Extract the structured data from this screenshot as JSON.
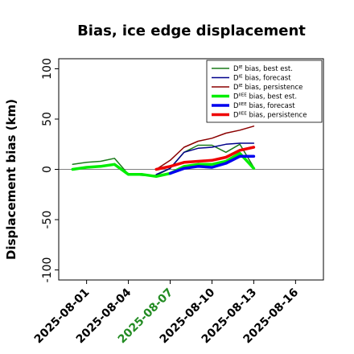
{
  "chart_data": {
    "type": "line",
    "title": "Bias, ice edge displacement",
    "ylabel": "Displacement bias (km)",
    "xlabel": "",
    "ylim": [
      -110,
      110
    ],
    "xlim": [
      "2025-07-30",
      "2025-08-18"
    ],
    "y_ticks": [
      -100,
      -50,
      0,
      50,
      100
    ],
    "x_ticks": [
      "2025-08-01",
      "2025-08-04",
      "2025-08-07",
      "2025-08-10",
      "2025-08-13",
      "2025-08-16"
    ],
    "highlight_tick": "2025-08-07",
    "highlight_color": "#228b22",
    "zero_line": true,
    "legend_position": "top-right",
    "series": [
      {
        "name": "D",
        "sup": "IE",
        "rest": " bias, best est.",
        "color": "#1a7a1a",
        "width": 1.5,
        "x": [
          "2025-07-31",
          "2025-08-01",
          "2025-08-02",
          "2025-08-03",
          "2025-08-04",
          "2025-08-05",
          "2025-08-06",
          "2025-08-07",
          "2025-08-08",
          "2025-08-09",
          "2025-08-10",
          "2025-08-11",
          "2025-08-12",
          "2025-08-13"
        ],
        "values": [
          5,
          7,
          8,
          11,
          -5,
          -6,
          -6,
          1,
          17,
          24,
          24,
          17,
          25,
          2
        ]
      },
      {
        "name": "D",
        "sup": "IE",
        "rest": " bias, forecast",
        "color": "#00008b",
        "width": 1.5,
        "x": [
          "2025-08-06",
          "2025-08-07",
          "2025-08-08",
          "2025-08-09",
          "2025-08-10",
          "2025-08-11",
          "2025-08-12",
          "2025-08-13"
        ],
        "values": [
          -5,
          1,
          17,
          21,
          22,
          25,
          26,
          26
        ]
      },
      {
        "name": "D",
        "sup": "IE",
        "rest": " bias, persistence",
        "color": "#8b0000",
        "width": 1.5,
        "x": [
          "2025-08-06",
          "2025-08-07",
          "2025-08-08",
          "2025-08-09",
          "2025-08-10",
          "2025-08-11",
          "2025-08-12",
          "2025-08-13"
        ],
        "values": [
          0,
          9,
          22,
          28,
          31,
          36,
          39,
          43
        ]
      },
      {
        "name": "D",
        "sup": "IIEE",
        "rest": " bias, best est.",
        "color": "#00ee00",
        "width": 3.5,
        "x": [
          "2025-07-31",
          "2025-08-01",
          "2025-08-02",
          "2025-08-03",
          "2025-08-04",
          "2025-08-05",
          "2025-08-06",
          "2025-08-07",
          "2025-08-08",
          "2025-08-09",
          "2025-08-10",
          "2025-08-11",
          "2025-08-12",
          "2025-08-13"
        ],
        "values": [
          0,
          2,
          3,
          5,
          -5,
          -5,
          -7,
          -4,
          3,
          5,
          5,
          8,
          16,
          1
        ]
      },
      {
        "name": "D",
        "sup": "IIEE",
        "rest": " bias, forecast",
        "color": "#0000ee",
        "width": 3.5,
        "x": [
          "2025-08-07",
          "2025-08-08",
          "2025-08-09",
          "2025-08-10",
          "2025-08-11",
          "2025-08-12",
          "2025-08-13"
        ],
        "values": [
          -4,
          1,
          3,
          2,
          6,
          13,
          13
        ]
      },
      {
        "name": "D",
        "sup": "IIEE",
        "rest": " bias, persistence",
        "color": "#ee0000",
        "width": 3.5,
        "x": [
          "2025-08-06",
          "2025-08-07",
          "2025-08-08",
          "2025-08-09",
          "2025-08-10",
          "2025-08-11",
          "2025-08-12",
          "2025-08-13"
        ],
        "values": [
          0,
          3,
          7,
          8,
          9,
          12,
          19,
          22
        ]
      }
    ]
  }
}
